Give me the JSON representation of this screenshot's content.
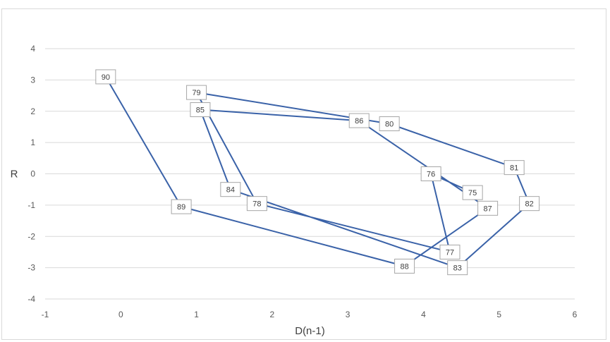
{
  "chart_data": {
    "type": "scatter",
    "title": "",
    "xlabel": "D(n-1)",
    "ylabel": "R",
    "xlim": [
      -1,
      6
    ],
    "ylim": [
      -4,
      4
    ],
    "x_ticks": [
      "-1",
      "0",
      "1",
      "2",
      "3",
      "4",
      "5",
      "6"
    ],
    "y_ticks": [
      "-4",
      "-3",
      "-2",
      "-1",
      "0",
      "1",
      "2",
      "3",
      "4"
    ],
    "grid": "horizontal",
    "line_color": "#3a62a8",
    "points": [
      {
        "label": "75",
        "x": 4.65,
        "y": -0.6
      },
      {
        "label": "76",
        "x": 4.1,
        "y": 0.0
      },
      {
        "label": "77",
        "x": 4.35,
        "y": -2.5
      },
      {
        "label": "78",
        "x": 1.8,
        "y": -0.95
      },
      {
        "label": "79",
        "x": 1.0,
        "y": 2.6
      },
      {
        "label": "80",
        "x": 3.55,
        "y": 1.6
      },
      {
        "label": "81",
        "x": 5.2,
        "y": 0.2
      },
      {
        "label": "82",
        "x": 5.4,
        "y": -0.95
      },
      {
        "label": "83",
        "x": 4.45,
        "y": -3.0
      },
      {
        "label": "84",
        "x": 1.45,
        "y": -0.5
      },
      {
        "label": "85",
        "x": 1.05,
        "y": 2.05
      },
      {
        "label": "86",
        "x": 3.15,
        "y": 1.7
      },
      {
        "label": "87",
        "x": 4.85,
        "y": -1.1
      },
      {
        "label": "88",
        "x": 3.75,
        "y": -2.95
      },
      {
        "label": "89",
        "x": 0.8,
        "y": -1.05
      },
      {
        "label": "90",
        "x": -0.2,
        "y": 3.1
      }
    ]
  }
}
